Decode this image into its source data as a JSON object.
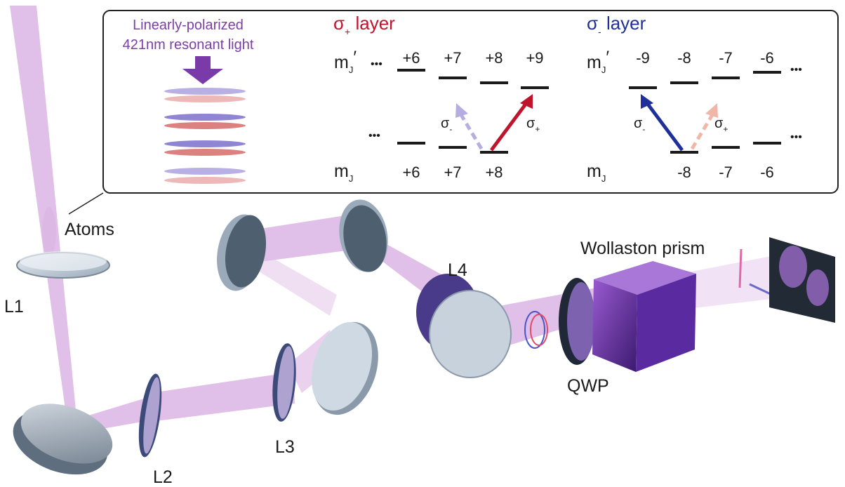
{
  "colors": {
    "beam": "#c78ad6",
    "purple_text": "#7b3fa6",
    "sigma_plus": "#c0142d",
    "sigma_minus": "#20309a",
    "dashed_plus": "#f0b7a8",
    "dashed_minus": "#b6aee0"
  },
  "inset": {
    "light_label_line1": "Linearly-polarized",
    "light_label_line2": "421nm resonant light",
    "left_panel": {
      "title_sigma": "σ",
      "title_sub": "+",
      "title_rest": " layer",
      "upper_row_label": "m",
      "upper_row_sub": "J",
      "upper_row_prime": "′",
      "lower_row_label": "m",
      "lower_row_sub": "J",
      "ellipsis": "•••",
      "upper_levels": [
        "+6",
        "+7",
        "+8",
        "+9"
      ],
      "lower_levels": [
        "+6",
        "+7",
        "+8"
      ],
      "arrow_dashed_label": "σ",
      "arrow_dashed_sub": "-",
      "arrow_solid_label": "σ",
      "arrow_solid_sub": "+"
    },
    "right_panel": {
      "title_sigma": "σ",
      "title_sub": "-",
      "title_rest": " layer",
      "upper_row_label": "m",
      "upper_row_sub": "J",
      "upper_row_prime": "′",
      "lower_row_label": "m",
      "lower_row_sub": "J",
      "ellipsis": "•••",
      "upper_levels": [
        "-9",
        "-8",
        "-7",
        "-6"
      ],
      "lower_levels": [
        "-8",
        "-7",
        "-6"
      ],
      "arrow_solid_label": "σ",
      "arrow_solid_sub": "-",
      "arrow_dashed_label": "σ",
      "arrow_dashed_sub": "+"
    }
  },
  "components": {
    "atoms": "Atoms",
    "l1": "L1",
    "l2": "L2",
    "l3": "L3",
    "l4": "L4",
    "wollaston": "Wollaston prism",
    "qwp": "QWP"
  }
}
